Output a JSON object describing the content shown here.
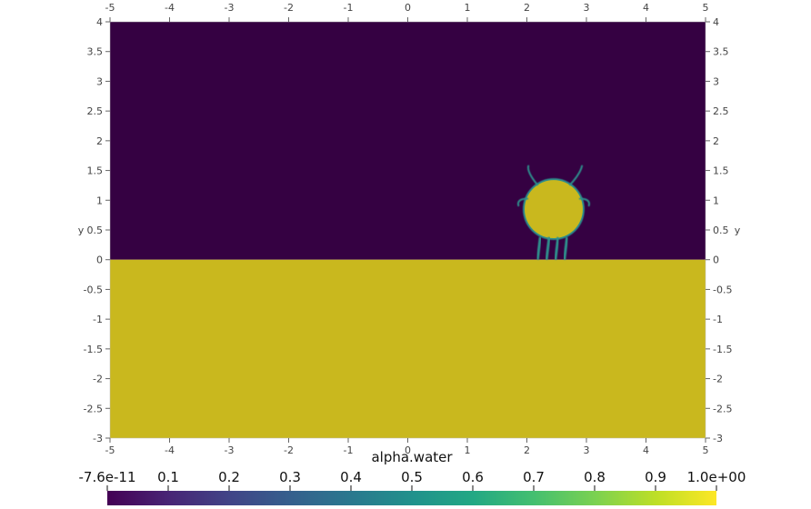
{
  "chart_data": {
    "type": "heatmap",
    "field": "alpha.water",
    "x_range": [
      -5,
      5
    ],
    "y_range": [
      -3,
      4
    ],
    "x_ticks": [
      -5,
      -4,
      -3,
      -2,
      -1,
      0,
      1,
      2,
      3,
      4,
      5
    ],
    "y_ticks": [
      -3,
      -2.5,
      -2,
      -1.5,
      -1,
      -0.5,
      0,
      0.5,
      1,
      1.5,
      2,
      2.5,
      3,
      3.5,
      4
    ],
    "x_tick_labels": [
      "-5",
      "-4",
      "-3",
      "-2",
      "-1",
      "0",
      "1",
      "2",
      "3",
      "4",
      "5"
    ],
    "y_tick_labels": [
      "-3",
      "-2.5",
      "-2",
      "-1.5",
      "-1",
      "-0.5",
      "0",
      "0.5",
      "1",
      "1.5",
      "2",
      "2.5",
      "3",
      "3.5",
      "4"
    ],
    "ylabel": "y",
    "water_surface_y": 0,
    "droplet": {
      "center_x": 2.45,
      "center_y": 0.85,
      "radius": 0.5,
      "value": 1.0
    },
    "air_value": 0.0,
    "water_value": 1.0,
    "colorbar": {
      "title": "alpha.water",
      "tick_values": [
        0.0,
        0.1,
        0.2,
        0.3,
        0.4,
        0.5,
        0.6,
        0.7,
        0.8,
        0.9,
        1.0
      ],
      "tick_labels": [
        "-7.6e-11",
        "0.1",
        "0.2",
        "0.3",
        "0.4",
        "0.5",
        "0.6",
        "0.7",
        "0.8",
        "0.9",
        "1.0e+00"
      ],
      "colormap": "viridis"
    },
    "colors": {
      "low": "#350142",
      "high": "#c9b81e",
      "interface": "#2f8f8c"
    }
  }
}
